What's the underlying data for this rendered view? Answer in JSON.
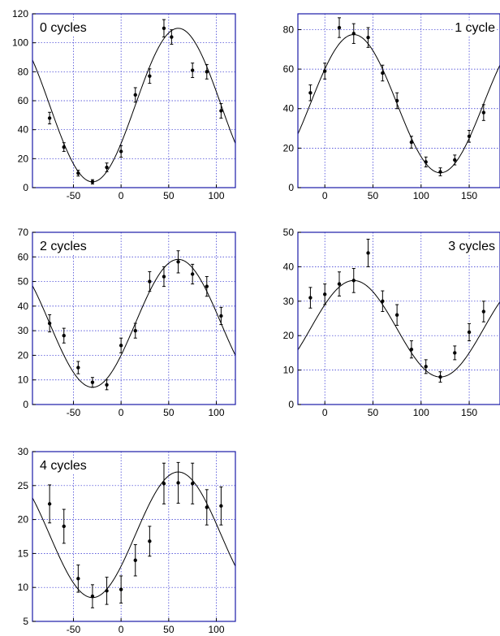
{
  "chart_data": [
    {
      "type": "scatter",
      "label": "0 cycles",
      "xlim": [
        -93,
        120
      ],
      "ylim": [
        0,
        120
      ],
      "xticks": [
        -50,
        0,
        50,
        100
      ],
      "yticks": [
        0,
        20,
        40,
        60,
        80,
        100,
        120
      ],
      "grid": true,
      "series": [
        {
          "x": [
            -75,
            -60,
            -45,
            -30,
            -15,
            0,
            15,
            30,
            45,
            53,
            75,
            90,
            105
          ],
          "y": [
            48,
            28,
            10,
            4,
            14,
            25,
            64,
            77,
            110,
            104,
            81,
            80,
            53
          ],
          "err": [
            4,
            3,
            2,
            1.5,
            3,
            4,
            5,
            5,
            6,
            5,
            5,
            5,
            5
          ]
        }
      ],
      "fit": {
        "offset": 57,
        "amplitude": 53,
        "phase": 60,
        "period": 180
      }
    },
    {
      "type": "scatter",
      "label": "1 cycle",
      "xlim": [
        -28,
        182
      ],
      "ylim": [
        0,
        88
      ],
      "xticks": [
        0,
        50,
        100,
        150
      ],
      "yticks": [
        0,
        20,
        40,
        60,
        80
      ],
      "grid": true,
      "series": [
        {
          "x": [
            -15,
            0,
            15,
            30,
            45,
            60,
            75,
            90,
            105,
            120,
            135,
            150,
            165
          ],
          "y": [
            48,
            59,
            81,
            78,
            76,
            58,
            44,
            23,
            13,
            8,
            14,
            26,
            38
          ],
          "err": [
            4,
            4,
            5,
            5,
            5,
            4,
            4,
            3,
            2.5,
            2,
            2.5,
            3,
            4
          ]
        }
      ],
      "fit": {
        "offset": 42.5,
        "amplitude": 35,
        "phase": 30,
        "period": 180
      }
    },
    {
      "type": "scatter",
      "label": "2 cycles",
      "xlim": [
        -93,
        120
      ],
      "ylim": [
        0,
        70
      ],
      "xticks": [
        -50,
        0,
        50,
        100
      ],
      "yticks": [
        0,
        10,
        20,
        30,
        40,
        50,
        60,
        70
      ],
      "grid": true,
      "series": [
        {
          "x": [
            -75,
            -60,
            -45,
            -30,
            -15,
            0,
            15,
            30,
            45,
            60,
            75,
            90,
            105
          ],
          "y": [
            33,
            28,
            15,
            9,
            8,
            24,
            30,
            50,
            52,
            58,
            53,
            48,
            36
          ],
          "err": [
            3.5,
            3,
            2.5,
            2,
            2,
            3,
            3,
            4,
            4,
            4.5,
            4,
            4,
            3.5
          ]
        }
      ],
      "fit": {
        "offset": 33,
        "amplitude": 26,
        "phase": 60,
        "period": 180
      }
    },
    {
      "type": "scatter",
      "label": "3 cycles",
      "xlim": [
        -28,
        182
      ],
      "ylim": [
        0,
        50
      ],
      "xticks": [
        0,
        50,
        100,
        150
      ],
      "yticks": [
        0,
        10,
        20,
        30,
        40,
        50
      ],
      "grid": true,
      "series": [
        {
          "x": [
            -15,
            0,
            15,
            30,
            45,
            60,
            75,
            90,
            105,
            120,
            135,
            150,
            165
          ],
          "y": [
            31,
            32,
            35,
            36,
            44,
            30,
            26,
            16,
            11,
            8,
            15,
            21,
            27
          ],
          "err": [
            3,
            3,
            3.5,
            3.5,
            4,
            3,
            3,
            2.5,
            2,
            1.5,
            2,
            2.5,
            3
          ]
        }
      ],
      "fit": {
        "offset": 22,
        "amplitude": 14,
        "phase": 30,
        "period": 180
      }
    },
    {
      "type": "scatter",
      "label": "4 cycles",
      "xlim": [
        -93,
        120
      ],
      "ylim": [
        5,
        30
      ],
      "xticks": [
        -50,
        0,
        50,
        100
      ],
      "yticks": [
        5,
        10,
        15,
        20,
        25,
        30
      ],
      "grid": true,
      "series": [
        {
          "x": [
            -75,
            -60,
            -45,
            -30,
            -15,
            0,
            15,
            30,
            45,
            60,
            75,
            90,
            105
          ],
          "y": [
            22.3,
            19,
            11.3,
            8.7,
            9.5,
            9.7,
            14,
            16.8,
            25.3,
            25.4,
            25.3,
            21.8,
            22
          ],
          "err": [
            2.8,
            2.5,
            2,
            1.7,
            2,
            2,
            2.3,
            2.2,
            3,
            3,
            3,
            2.6,
            2.8
          ]
        }
      ],
      "fit": {
        "offset": 17.75,
        "amplitude": 9.25,
        "phase": 60,
        "period": 180
      }
    }
  ]
}
